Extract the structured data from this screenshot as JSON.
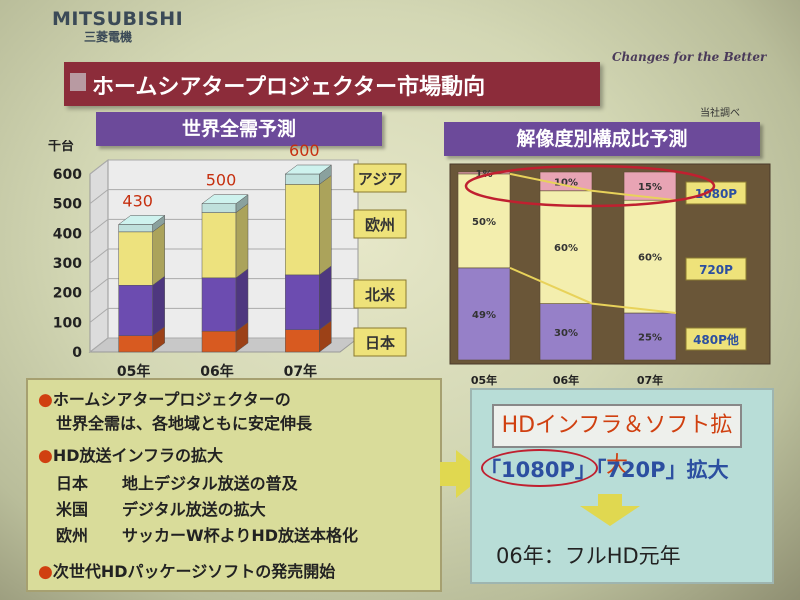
{
  "brand": {
    "name": "MITSUBISHI",
    "name_jp": "三菱電機",
    "tagline": "Changes for the Better"
  },
  "slide_title": "ホームシアタープロジェクター市場動向",
  "source_note": "当社調べ",
  "chart_data": [
    {
      "type": "bar",
      "stacked": true,
      "title": "世界全需予測",
      "ylabel": "千台",
      "categories": [
        "05年",
        "06年",
        "07年"
      ],
      "ylim": [
        0,
        600
      ],
      "yticks": [
        0,
        100,
        200,
        300,
        400,
        500,
        600
      ],
      "totals": [
        "430",
        "500",
        "600"
      ],
      "series": [
        {
          "name": "日本",
          "values": [
            55,
            70,
            75
          ],
          "color": "#d85a20"
        },
        {
          "name": "北米",
          "values": [
            170,
            180,
            185
          ],
          "color": "#6c4cb0"
        },
        {
          "name": "欧州",
          "values": [
            180,
            220,
            305
          ],
          "color": "#ede27e"
        },
        {
          "name": "アジア",
          "values": [
            25,
            30,
            35
          ],
          "color": "#bfe0dc"
        }
      ]
    },
    {
      "type": "bar",
      "stacked": true,
      "percent": true,
      "title": "解像度別構成比予測",
      "categories": [
        "05年",
        "06年",
        "07年"
      ],
      "series": [
        {
          "name": "480P他",
          "values": [
            49,
            30,
            25
          ],
          "labels": [
            "49%",
            "30%",
            "25%"
          ],
          "color": "#9680c8"
        },
        {
          "name": "720P",
          "values": [
            50,
            60,
            60
          ],
          "labels": [
            "50%",
            "60%",
            "60%"
          ],
          "color": "#f3eeae"
        },
        {
          "name": "1080P",
          "values": [
            1,
            10,
            15
          ],
          "labels": [
            "1%",
            "10%",
            "15%"
          ],
          "color": "#e8a4b4"
        }
      ]
    }
  ],
  "bullets": {
    "b1_line1": "ホームシアタープロジェクターの",
    "b1_line2": "世界全需は、各地域ともに安定伸長",
    "b2": "HD放送インフラの拡大",
    "rows": [
      {
        "region": "日本",
        "text": "地上デジタル放送の普及"
      },
      {
        "region": "米国",
        "text": "デジタル放送の拡大"
      },
      {
        "region": "欧州",
        "text": "サッカーW杯よりHD放送本格化"
      }
    ],
    "b3": "次世代HDパッケージソフトの発売開始"
  },
  "right": {
    "heading": "HDインフラ＆ソフト拡大",
    "res_line": "「1080P」「720P」拡大",
    "first_year": "06年：フルHD元年"
  },
  "colors": {
    "title_bg": "#8c2c3a",
    "header_bg": "#6c4a9a",
    "bullet": "#d04010"
  }
}
